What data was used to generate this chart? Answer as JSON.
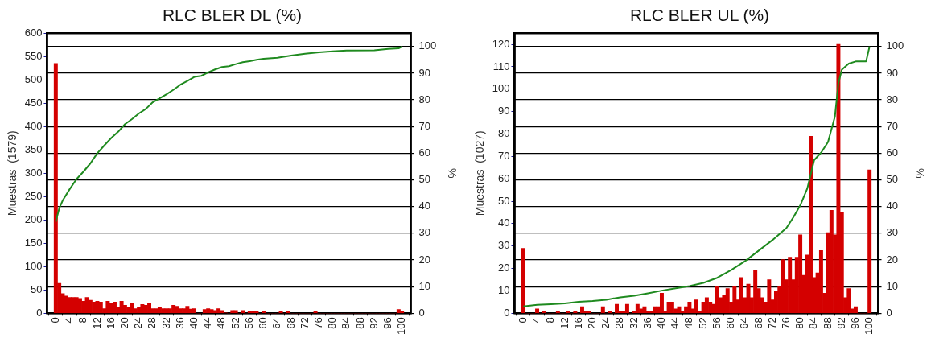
{
  "chart_data": [
    {
      "type": "bar",
      "title": "RLC BLER DL (%)",
      "ylabel": "Muestras  (1579)",
      "y2label": "%",
      "x": [
        0,
        1,
        2,
        3,
        4,
        5,
        6,
        7,
        8,
        9,
        10,
        11,
        12,
        13,
        14,
        15,
        16,
        17,
        18,
        19,
        20,
        21,
        22,
        23,
        24,
        25,
        26,
        27,
        28,
        29,
        30,
        31,
        32,
        33,
        34,
        35,
        36,
        37,
        38,
        39,
        40,
        41,
        42,
        43,
        44,
        45,
        46,
        47,
        48,
        49,
        50,
        51,
        52,
        53,
        54,
        55,
        56,
        57,
        58,
        59,
        60,
        61,
        62,
        63,
        64,
        65,
        66,
        67,
        68,
        69,
        70,
        71,
        72,
        73,
        74,
        75,
        76,
        77,
        78,
        79,
        80,
        81,
        82,
        83,
        84,
        85,
        86,
        87,
        88,
        89,
        90,
        91,
        92,
        93,
        94,
        95,
        96,
        97,
        98,
        99,
        100
      ],
      "xlim": [
        -0.5,
        100.5
      ],
      "xticks": [
        0,
        4,
        8,
        12,
        16,
        20,
        24,
        28,
        32,
        36,
        40,
        44,
        48,
        52,
        56,
        60,
        64,
        68,
        72,
        76,
        80,
        84,
        88,
        92,
        96,
        100
      ],
      "ylim": [
        0,
        600
      ],
      "yticks": [
        0,
        50,
        100,
        150,
        200,
        250,
        300,
        350,
        400,
        450,
        500,
        550,
        600
      ],
      "y2lim": [
        0,
        105
      ],
      "y2ticks": [
        0,
        10,
        20,
        30,
        40,
        50,
        60,
        70,
        80,
        90,
        100
      ],
      "grid": "y2",
      "series": [
        {
          "color": "#d40000",
          "values": [
            535,
            64,
            42,
            37,
            34,
            34,
            34,
            32,
            26,
            34,
            28,
            24,
            26,
            24,
            10,
            26,
            21,
            24,
            13,
            26,
            17,
            13,
            21,
            10,
            13,
            19,
            17,
            21,
            10,
            10,
            13,
            10,
            10,
            10,
            17,
            15,
            10,
            10,
            15,
            9,
            10,
            0,
            0,
            8,
            10,
            8,
            6,
            10,
            6,
            1,
            0,
            6,
            6,
            0,
            6,
            0,
            4,
            4,
            4,
            0,
            4,
            0,
            0,
            0,
            0,
            4,
            0,
            4,
            0,
            0,
            0,
            0,
            0,
            0,
            0,
            4,
            0,
            0,
            0,
            0,
            0,
            0,
            0,
            0,
            0,
            0,
            0,
            0,
            0,
            0,
            0,
            0,
            0,
            0,
            0,
            0,
            0,
            0,
            0,
            8,
            4
          ]
        },
        {
          "type": "line",
          "axis": "y2",
          "color": "#1f8a1f",
          "x": [
            0,
            1,
            2,
            4,
            6,
            8,
            10,
            12,
            14,
            16,
            18,
            20,
            22,
            24,
            26,
            28,
            30,
            32,
            34,
            36,
            38,
            40,
            42,
            44,
            46,
            48,
            50,
            52,
            54,
            56,
            58,
            60,
            64,
            68,
            72,
            76,
            80,
            84,
            92,
            96,
            99,
            100
          ],
          "values": [
            34.3,
            39.4,
            42.3,
            46.5,
            50.3,
            53.1,
            56.2,
            60,
            62.9,
            65.7,
            68,
            70.9,
            72.8,
            74.9,
            76.6,
            79.1,
            80.6,
            82.1,
            83.8,
            85.7,
            87.1,
            88.6,
            89,
            90.3,
            91.4,
            92.3,
            92.6,
            93.4,
            94.1,
            94.5,
            95,
            95.4,
            95.8,
            96.6,
            97.3,
            97.8,
            98.2,
            98.5,
            98.6,
            99.1,
            99.3,
            100
          ]
        }
      ]
    },
    {
      "type": "bar",
      "title": "RLC BLER UL (%)",
      "ylabel": "Muestras  (1027)",
      "y2label": "%",
      "x": [
        0,
        1,
        2,
        3,
        4,
        5,
        6,
        7,
        8,
        9,
        10,
        11,
        12,
        13,
        14,
        15,
        16,
        17,
        18,
        19,
        20,
        21,
        22,
        23,
        24,
        25,
        26,
        27,
        28,
        29,
        30,
        31,
        32,
        33,
        34,
        35,
        36,
        37,
        38,
        39,
        40,
        41,
        42,
        43,
        44,
        45,
        46,
        47,
        48,
        49,
        50,
        51,
        52,
        53,
        54,
        55,
        56,
        57,
        58,
        59,
        60,
        61,
        62,
        63,
        64,
        65,
        66,
        67,
        68,
        69,
        70,
        71,
        72,
        73,
        74,
        75,
        76,
        77,
        78,
        79,
        80,
        81,
        82,
        83,
        84,
        85,
        86,
        87,
        88,
        89,
        90,
        91,
        92,
        93,
        94,
        95,
        96,
        97,
        98,
        99,
        100
      ],
      "xlim": [
        -0.5,
        100.5
      ],
      "xticks": [
        0,
        4,
        8,
        12,
        16,
        20,
        24,
        28,
        32,
        36,
        40,
        44,
        48,
        52,
        56,
        60,
        64,
        68,
        72,
        76,
        80,
        84,
        88,
        92,
        96,
        100
      ],
      "ylim": [
        0,
        125
      ],
      "yticks": [
        0,
        10,
        20,
        30,
        40,
        50,
        60,
        70,
        80,
        90,
        100,
        110,
        120
      ],
      "y2lim": [
        0,
        105
      ],
      "y2ticks": [
        0,
        10,
        20,
        30,
        40,
        50,
        60,
        70,
        80,
        90,
        100
      ],
      "grid": "y2",
      "series": [
        {
          "color": "#d40000",
          "values": [
            29,
            0,
            0,
            0,
            2,
            0,
            1,
            0,
            0,
            0,
            1,
            0,
            0,
            1,
            0,
            1,
            0,
            3,
            1,
            1,
            0,
            0,
            0,
            3,
            0,
            1,
            0,
            4,
            1,
            1,
            4,
            0,
            1,
            4,
            2,
            3,
            1,
            1,
            3,
            3,
            9,
            1,
            5,
            5,
            2,
            3,
            1,
            3,
            5,
            2,
            6,
            1,
            5,
            7,
            5,
            4,
            12,
            7,
            8,
            11,
            5,
            12,
            6,
            16,
            7,
            13,
            7,
            19,
            11,
            7,
            5,
            15,
            6,
            10,
            12,
            24,
            15,
            25,
            15,
            25,
            35,
            17,
            26,
            79,
            16,
            18,
            28,
            9,
            36,
            46,
            35,
            120,
            45,
            7,
            11,
            2,
            3,
            0,
            0,
            0,
            64
          ]
        },
        {
          "type": "line",
          "axis": "y2",
          "color": "#1f8a1f",
          "x": [
            0,
            4,
            8,
            12,
            16,
            20,
            24,
            28,
            32,
            36,
            40,
            44,
            48,
            52,
            56,
            60,
            64,
            68,
            72,
            76,
            78,
            80,
            82,
            84,
            86,
            88,
            90,
            91,
            92,
            94,
            96,
            99,
            100
          ],
          "values": [
            2.6,
            3.2,
            3.4,
            3.7,
            4.3,
            4.6,
            5.1,
            6,
            6.6,
            7.5,
            8.5,
            9.4,
            10.2,
            11.4,
            13.3,
            16.2,
            19.5,
            23.5,
            27.5,
            32,
            36,
            40.5,
            46.7,
            57.4,
            60.2,
            64.2,
            73.8,
            86.2,
            91.3,
            93.6,
            94.4,
            94.4,
            100
          ]
        }
      ]
    }
  ]
}
